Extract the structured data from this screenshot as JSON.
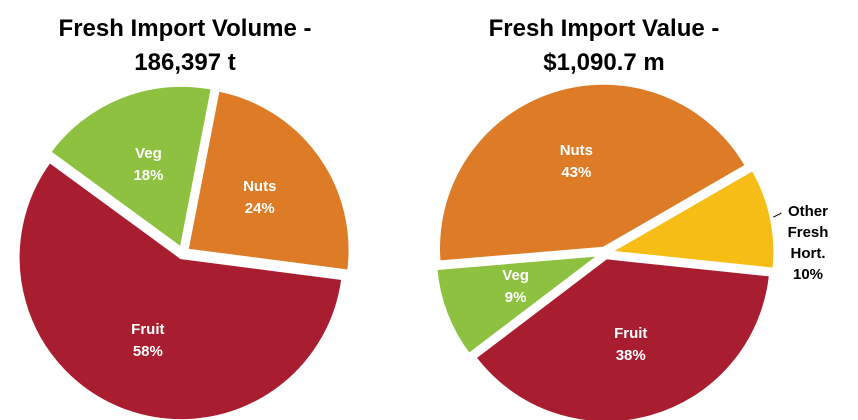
{
  "chart_data": [
    {
      "type": "pie",
      "title": "Fresh Import Volume - 186,397 t",
      "categories": [
        "Nuts",
        "Fruit",
        "Veg"
      ],
      "values": [
        24,
        58,
        18
      ],
      "value_labels": [
        "24%",
        "58%",
        "18%"
      ],
      "colors": [
        "#dd7b27",
        "#a91d30",
        "#8dc13f"
      ]
    },
    {
      "type": "pie",
      "title": "Fresh Import Value - $1,090.7 m",
      "categories": [
        "Other Fresh Hort.",
        "Fruit",
        "Veg",
        "Nuts"
      ],
      "values": [
        10,
        38,
        9,
        43
      ],
      "value_labels": [
        "10%",
        "38%",
        "9%",
        "43%"
      ],
      "colors": [
        "#f7bd17",
        "#a91d30",
        "#8dc13f",
        "#dd7b27"
      ]
    }
  ]
}
